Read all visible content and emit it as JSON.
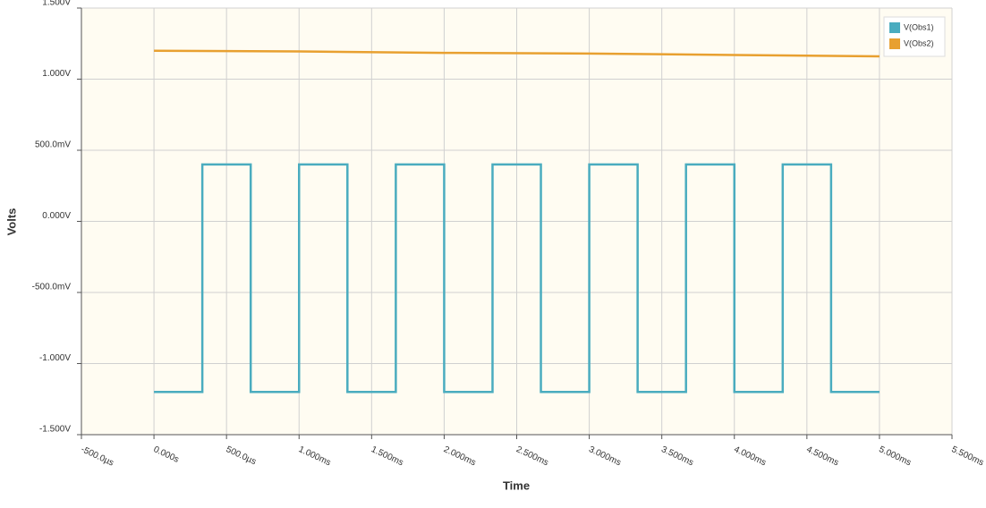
{
  "chart_data": {
    "type": "line",
    "x_label": "Time",
    "y_label": "Volts",
    "xlim": [
      -0.0005,
      0.0055
    ],
    "xticks": [
      {
        "value": -0.0005,
        "label": "-500.0µs"
      },
      {
        "value": 0,
        "label": "0.000s"
      },
      {
        "value": 0.0005,
        "label": "500.0µs"
      },
      {
        "value": 0.001,
        "label": "1.000ms"
      },
      {
        "value": 0.0015,
        "label": "1.500ms"
      },
      {
        "value": 0.002,
        "label": "2.000ms"
      },
      {
        "value": 0.0025,
        "label": "2.500ms"
      },
      {
        "value": 0.003,
        "label": "3.000ms"
      },
      {
        "value": 0.0035,
        "label": "3.500ms"
      },
      {
        "value": 0.004,
        "label": "4.000ms"
      },
      {
        "value": 0.0045,
        "label": "4.500ms"
      },
      {
        "value": 0.005,
        "label": "5.000ms"
      },
      {
        "value": 0.0055,
        "label": "5.500ms"
      }
    ],
    "ylim": [
      -1.5,
      1.5
    ],
    "yticks": [
      {
        "value": -1.5,
        "label": "-1.500V"
      },
      {
        "value": -1,
        "label": "-1.000V"
      },
      {
        "value": -0.5,
        "label": "-500.0mV"
      },
      {
        "value": 0,
        "label": "0.000V"
      },
      {
        "value": 0.5,
        "label": "500.0mV"
      },
      {
        "value": 1,
        "label": "1.000V"
      },
      {
        "value": 1.5,
        "label": "1.500V"
      }
    ],
    "grid": true,
    "legend": "top-right",
    "series": [
      {
        "name": "V(Obs1)",
        "color": "#4aacbf",
        "x": [
          0,
          0.0003333,
          0.0003333,
          0.0006667,
          0.0006667,
          0.001,
          0.001,
          0.0013333,
          0.0013333,
          0.0016667,
          0.0016667,
          0.002,
          0.002,
          0.0023333,
          0.0023333,
          0.0026667,
          0.0026667,
          0.003,
          0.003,
          0.0033333,
          0.0033333,
          0.0036667,
          0.0036667,
          0.004,
          0.004,
          0.0043333,
          0.0043333,
          0.0046667,
          0.0046667,
          0.005
        ],
        "values": [
          -1.2,
          -1.2,
          0.4,
          0.4,
          -1.2,
          -1.2,
          0.4,
          0.4,
          -1.2,
          -1.2,
          0.4,
          0.4,
          -1.2,
          -1.2,
          0.4,
          0.4,
          -1.2,
          -1.2,
          0.4,
          0.4,
          -1.2,
          -1.2,
          0.4,
          0.4,
          -1.2,
          -1.2,
          0.4,
          0.4,
          -1.2,
          -1.2
        ]
      },
      {
        "name": "V(Obs2)",
        "color": "#e8a030",
        "x": [
          0,
          0.001,
          0.002,
          0.003,
          0.004,
          0.005
        ],
        "values": [
          1.2,
          1.195,
          1.185,
          1.18,
          1.17,
          1.16
        ]
      }
    ]
  }
}
